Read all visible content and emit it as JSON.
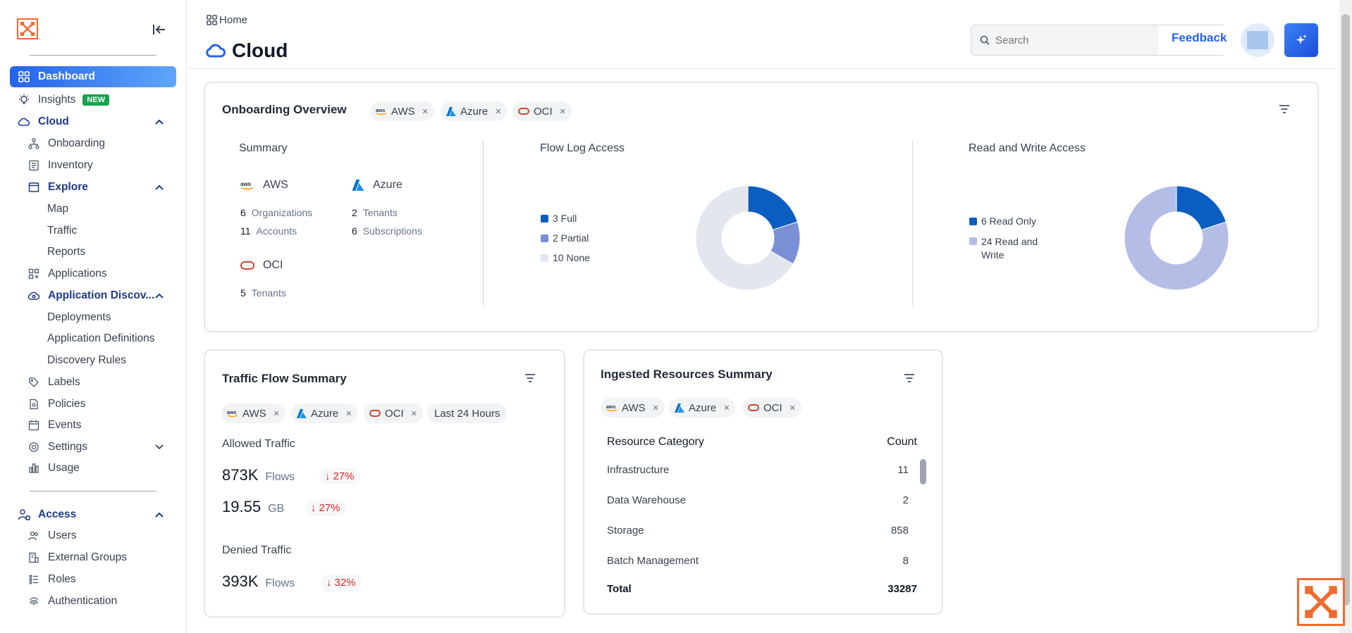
{
  "breadcrumb": {
    "label": "Home"
  },
  "page": {
    "title": "Cloud"
  },
  "search": {
    "placeholder": "Search"
  },
  "header": {
    "feedback_label": "Feedback"
  },
  "sidebar": {
    "dashboard": "Dashboard",
    "insights": "Insights",
    "insights_badge": "NEW",
    "cloud": "Cloud",
    "onboarding": "Onboarding",
    "inventory": "Inventory",
    "explore": "Explore",
    "map": "Map",
    "traffic": "Traffic",
    "reports": "Reports",
    "applications": "Applications",
    "app_discovery": "Application Discov...",
    "deployments": "Deployments",
    "app_definitions": "Application Definitions",
    "discovery_rules": "Discovery Rules",
    "labels": "Labels",
    "policies": "Policies",
    "events": "Events",
    "settings": "Settings",
    "usage": "Usage",
    "access": "Access",
    "users": "Users",
    "external_groups": "External Groups",
    "roles": "Roles",
    "authentication": "Authentication"
  },
  "onboarding": {
    "title": "Onboarding Overview",
    "chips": [
      "AWS",
      "Azure",
      "OCI"
    ],
    "summary": {
      "heading": "Summary",
      "aws": {
        "name": "AWS",
        "organizations": "6",
        "organizations_label": "Organizations",
        "accounts": "11",
        "accounts_label": "Accounts"
      },
      "azure": {
        "name": "Azure",
        "tenants": "2",
        "tenants_label": "Tenants",
        "subscriptions": "6",
        "subscriptions_label": "Subscriptions"
      },
      "oci": {
        "name": "OCI",
        "tenants": "5",
        "tenants_label": "Tenants"
      }
    },
    "flow_log": {
      "heading": "Flow Log Access",
      "legend": [
        "3 Full",
        "2 Partial",
        "10 None"
      ],
      "values": [
        3,
        2,
        10
      ],
      "colors": [
        "#0a5ec2",
        "#7b8fd6",
        "#e1e6ef"
      ]
    },
    "read_write": {
      "heading": "Read and Write Access",
      "legend": [
        "6 Read Only",
        "24 Read and Write"
      ],
      "values": [
        6,
        24
      ],
      "colors": [
        "#0a5ec2",
        "#b4bde6"
      ]
    }
  },
  "traffic": {
    "title": "Traffic Flow Summary",
    "chips": [
      "AWS",
      "Azure",
      "OCI"
    ],
    "range_chip": "Last 24 Hours",
    "allowed_label": "Allowed Traffic",
    "allowed_flows": "873K",
    "allowed_flows_unit": "Flows",
    "allowed_flows_delta": "27%",
    "allowed_bytes": "19.55",
    "allowed_bytes_unit": "GB",
    "allowed_bytes_delta": "27%",
    "denied_label": "Denied Traffic",
    "denied_flows": "393K",
    "denied_flows_unit": "Flows",
    "denied_flows_delta": "32%"
  },
  "ingested": {
    "title": "Ingested Resources Summary",
    "chips": [
      "AWS",
      "Azure",
      "OCI"
    ],
    "col_category": "Resource Category",
    "col_count": "Count",
    "rows": [
      {
        "category": "Infrastructure",
        "count": "11"
      },
      {
        "category": "Data Warehouse",
        "count": "2"
      },
      {
        "category": "Storage",
        "count": "858"
      },
      {
        "category": "Batch Management",
        "count": "8"
      }
    ],
    "total_label": "Total",
    "total_count": "33287"
  },
  "icons": {
    "aws": "aws-logo-icon",
    "azure": "azure-logo-icon",
    "oci": "oci-logo-icon",
    "filter": "filter-icon",
    "arrow_down": "arrow-down-icon"
  },
  "colors": {
    "accent": "#2563eb",
    "brand": "#ef6b2f",
    "negative": "#dc2626"
  }
}
